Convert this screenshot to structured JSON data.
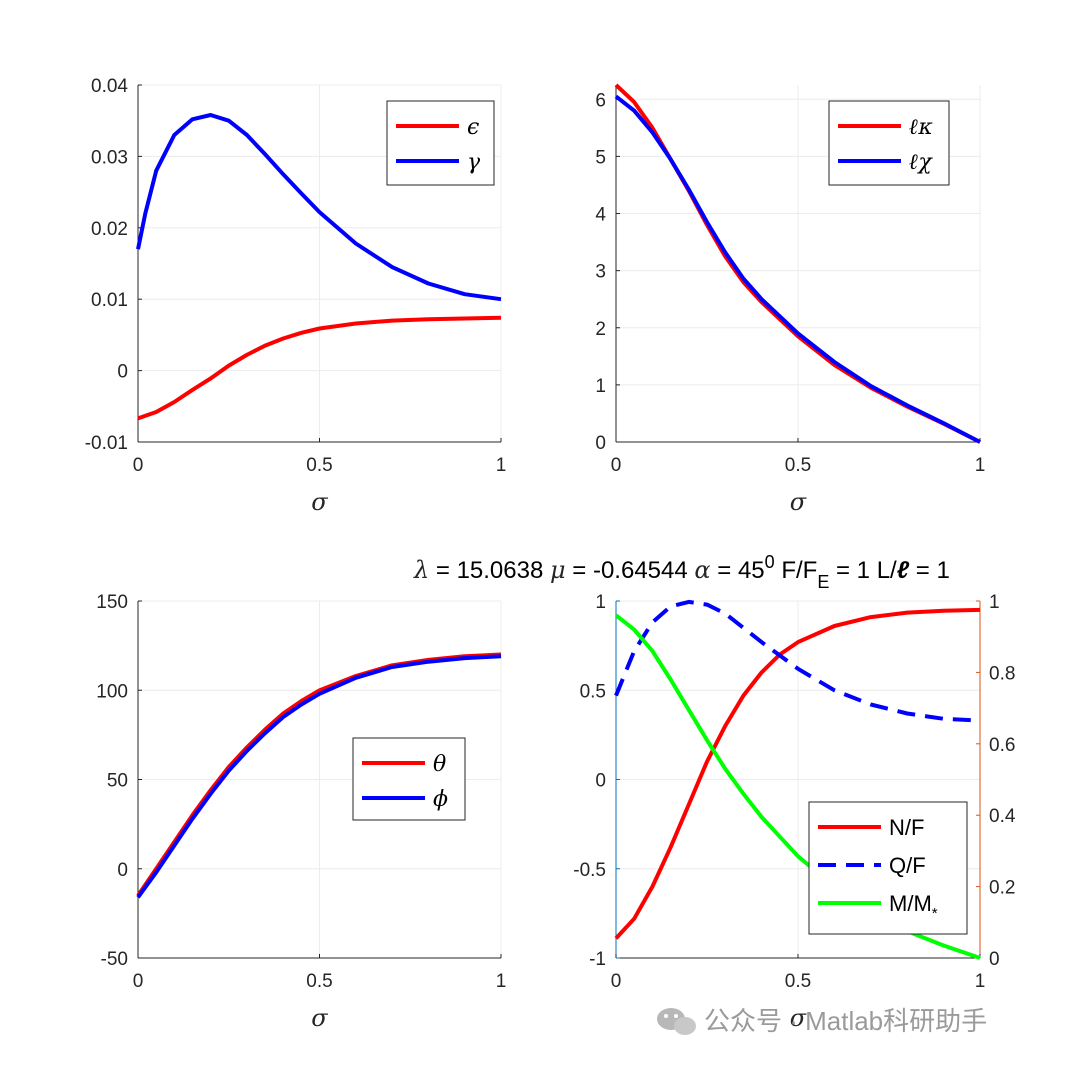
{
  "title": {
    "lambda_sym": "λ",
    "lambda_text": " = 15.0638  ",
    "mu_sym": "μ",
    "mu_text": " = -0.64544  ",
    "alpha_sym": "α",
    "alpha_text": " = 45",
    "alpha_sup": "0",
    "ff_text": "  F/F",
    "ff_sub": "E",
    "ff_val": " = 1  L/",
    "ell": "ℓ",
    "l_val": " = 1"
  },
  "watermark": {
    "icon": "wechat-icon",
    "text": "公众号 · Matlab科研助手"
  },
  "colors": {
    "red": "#ff0000",
    "blue": "#0000ff",
    "green": "#00ff00",
    "left_axis": "#0072bd",
    "right_axis": "#d95319"
  },
  "chart_data": [
    {
      "type": "line",
      "xlabel": "σ",
      "xlim": [
        0,
        1
      ],
      "ylim": [
        -0.01,
        0.04
      ],
      "xticks": [
        "0",
        "0.5",
        "1"
      ],
      "yticks": [
        "-0.01",
        "0",
        "0.01",
        "0.02",
        "0.03",
        "0.04"
      ],
      "grid": true,
      "legend_position": "top-right",
      "series": [
        {
          "name": "ϵ",
          "color": "#ff0000",
          "x": [
            0,
            0.05,
            0.1,
            0.15,
            0.2,
            0.25,
            0.3,
            0.35,
            0.4,
            0.45,
            0.5,
            0.6,
            0.7,
            0.8,
            0.9,
            1.0
          ],
          "y": [
            -0.0067,
            -0.0058,
            -0.0044,
            -0.0027,
            -0.0011,
            0.0007,
            0.0022,
            0.0035,
            0.0045,
            0.0053,
            0.0059,
            0.0066,
            0.007,
            0.0072,
            0.0073,
            0.0074
          ]
        },
        {
          "name": "γ",
          "color": "#0000ff",
          "x": [
            0,
            0.02,
            0.05,
            0.1,
            0.15,
            0.2,
            0.25,
            0.3,
            0.35,
            0.4,
            0.45,
            0.5,
            0.6,
            0.7,
            0.8,
            0.9,
            1.0
          ],
          "y": [
            0.017,
            0.022,
            0.028,
            0.033,
            0.0352,
            0.0358,
            0.035,
            0.033,
            0.0303,
            0.0275,
            0.0248,
            0.0222,
            0.0178,
            0.0145,
            0.0122,
            0.0107,
            0.01
          ]
        }
      ]
    },
    {
      "type": "line",
      "xlabel": "σ",
      "xlim": [
        0,
        1
      ],
      "ylim": [
        0,
        6.25
      ],
      "xticks": [
        "0",
        "0.5",
        "1"
      ],
      "yticks": [
        "0",
        "1",
        "2",
        "3",
        "4",
        "5",
        "6"
      ],
      "grid": true,
      "legend_position": "top-right",
      "series": [
        {
          "name": "κ",
          "color": "#ff0000",
          "x": [
            0,
            0.05,
            0.1,
            0.15,
            0.2,
            0.25,
            0.3,
            0.35,
            0.4,
            0.5,
            0.6,
            0.7,
            0.8,
            0.9,
            1.0
          ],
          "y": [
            6.25,
            5.95,
            5.5,
            4.95,
            4.4,
            3.8,
            3.25,
            2.8,
            2.45,
            1.85,
            1.35,
            0.95,
            0.62,
            0.32,
            0.0
          ]
        },
        {
          "name": "χ",
          "color": "#0000ff",
          "x": [
            0,
            0.05,
            0.1,
            0.15,
            0.2,
            0.25,
            0.3,
            0.35,
            0.4,
            0.5,
            0.6,
            0.7,
            0.8,
            0.9,
            1.0
          ],
          "y": [
            6.05,
            5.8,
            5.42,
            4.95,
            4.42,
            3.85,
            3.32,
            2.86,
            2.5,
            1.9,
            1.4,
            0.98,
            0.64,
            0.33,
            0.0
          ]
        }
      ]
    },
    {
      "type": "line",
      "xlabel": "σ",
      "xlim": [
        0,
        1
      ],
      "ylim": [
        -50,
        150
      ],
      "xticks": [
        "0",
        "0.5",
        "1"
      ],
      "yticks": [
        "-50",
        "0",
        "50",
        "100",
        "150"
      ],
      "grid": true,
      "legend_position": "center-right",
      "series": [
        {
          "name": "θ",
          "color": "#ff0000",
          "x": [
            0,
            0.05,
            0.1,
            0.15,
            0.2,
            0.25,
            0.3,
            0.35,
            0.4,
            0.45,
            0.5,
            0.6,
            0.7,
            0.8,
            0.9,
            1.0
          ],
          "y": [
            -15,
            0,
            15,
            30,
            44,
            57,
            68,
            78,
            87,
            94,
            100,
            108,
            114,
            117,
            119,
            120
          ]
        },
        {
          "name": "ϕ",
          "color": "#0000ff",
          "x": [
            0,
            0.05,
            0.1,
            0.15,
            0.2,
            0.25,
            0.3,
            0.35,
            0.4,
            0.45,
            0.5,
            0.6,
            0.7,
            0.8,
            0.9,
            1.0
          ],
          "y": [
            -16,
            -2,
            13,
            28,
            42,
            55,
            66,
            76,
            85,
            92,
            98,
            107,
            113,
            116,
            118,
            119
          ]
        }
      ]
    },
    {
      "type": "line",
      "xlabel": "σ",
      "xlim": [
        0,
        1
      ],
      "ylim_left": [
        -1,
        1
      ],
      "ylim_right": [
        0,
        1
      ],
      "xticks": [
        "0",
        "0.5",
        "1"
      ],
      "yticks_left": [
        "-1",
        "-0.5",
        "0",
        "0.5",
        "1"
      ],
      "yticks_right": [
        "0",
        "0.2",
        "0.4",
        "0.6",
        "0.8",
        "1"
      ],
      "grid": true,
      "legend_position": "bottom-right",
      "series": [
        {
          "name": "N/F",
          "color": "#ff0000",
          "axis": "left",
          "x": [
            0,
            0.05,
            0.1,
            0.15,
            0.2,
            0.25,
            0.3,
            0.35,
            0.4,
            0.45,
            0.5,
            0.6,
            0.7,
            0.8,
            0.9,
            1.0
          ],
          "y": [
            -0.89,
            -0.78,
            -0.6,
            -0.38,
            -0.14,
            0.1,
            0.3,
            0.47,
            0.6,
            0.7,
            0.77,
            0.86,
            0.91,
            0.935,
            0.945,
            0.95
          ]
        },
        {
          "name": "Q/F",
          "color": "#0000ff",
          "axis": "left",
          "dash": true,
          "x": [
            0,
            0.05,
            0.1,
            0.15,
            0.2,
            0.25,
            0.3,
            0.35,
            0.4,
            0.5,
            0.6,
            0.7,
            0.8,
            0.9,
            1.0
          ],
          "y": [
            0.47,
            0.72,
            0.88,
            0.97,
            0.995,
            0.98,
            0.93,
            0.85,
            0.77,
            0.62,
            0.5,
            0.42,
            0.37,
            0.34,
            0.33
          ]
        },
        {
          "name": "M/M",
          "name_sub": "*",
          "color": "#00ff00",
          "axis": "left",
          "x": [
            0,
            0.05,
            0.1,
            0.15,
            0.2,
            0.25,
            0.3,
            0.35,
            0.4,
            0.5,
            0.6,
            0.7,
            0.8,
            0.9,
            1.0
          ],
          "y": [
            0.92,
            0.84,
            0.72,
            0.56,
            0.39,
            0.22,
            0.06,
            -0.08,
            -0.21,
            -0.43,
            -0.6,
            -0.74,
            -0.85,
            -0.93,
            -1.0
          ]
        }
      ]
    }
  ]
}
